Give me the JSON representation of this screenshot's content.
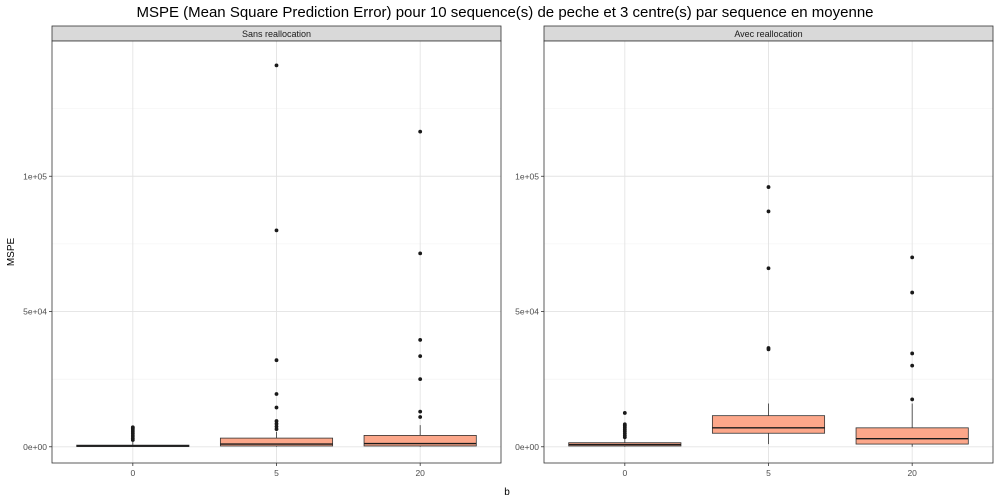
{
  "chart_data": {
    "type": "boxplot",
    "title": "MSPE (Mean Square Prediction Error) pour 10 sequence(s) de peche et 3 centre(s) par sequence en moyenne",
    "xlabel": "b",
    "ylabel": "MSPE",
    "categories": [
      "0",
      "5",
      "20"
    ],
    "ylim": [
      -6000,
      150000
    ],
    "y_ticks": [
      {
        "value": 0,
        "label": "0e+00"
      },
      {
        "value": 50000,
        "label": "5e+04"
      },
      {
        "value": 100000,
        "label": "1e+05"
      }
    ],
    "grid": true,
    "box_color": "#fca78a",
    "panels": [
      {
        "label": "Sans reallocation",
        "boxes": [
          {
            "x": "0",
            "q1": 80,
            "median": 300,
            "q3": 600,
            "whisker_low": 0,
            "whisker_high": 2000,
            "outliers": [
              2500,
              3200,
              4000,
              4800,
              5500,
              6200,
              6800,
              7200
            ]
          },
          {
            "x": "5",
            "q1": 300,
            "median": 1000,
            "q3": 3200,
            "whisker_low": 0,
            "whisker_high": 5500,
            "outliers": [
              6500,
              7500,
              8500,
              9500,
              14500,
              19500,
              32000,
              80000,
              141000
            ]
          },
          {
            "x": "20",
            "q1": 300,
            "median": 1200,
            "q3": 4200,
            "whisker_low": 0,
            "whisker_high": 8000,
            "outliers": [
              11000,
              13000,
              25000,
              33500,
              39500,
              71500,
              116500
            ]
          }
        ]
      },
      {
        "label": "Avec reallocation",
        "boxes": [
          {
            "x": "0",
            "q1": 300,
            "median": 800,
            "q3": 1500,
            "whisker_low": 0,
            "whisker_high": 3000,
            "outliers": [
              3500,
              4200,
              5000,
              5800,
              6500,
              7200,
              7800,
              8300,
              12500
            ]
          },
          {
            "x": "5",
            "q1": 5000,
            "median": 7000,
            "q3": 11500,
            "whisker_low": 1000,
            "whisker_high": 16000,
            "outliers": [
              36000,
              36500,
              66000,
              87000,
              96000
            ]
          },
          {
            "x": "20",
            "q1": 1000,
            "median": 3000,
            "q3": 7000,
            "whisker_low": 0,
            "whisker_high": 16000,
            "outliers": [
              17500,
              30000,
              34500,
              57000,
              70000
            ]
          }
        ]
      }
    ]
  }
}
